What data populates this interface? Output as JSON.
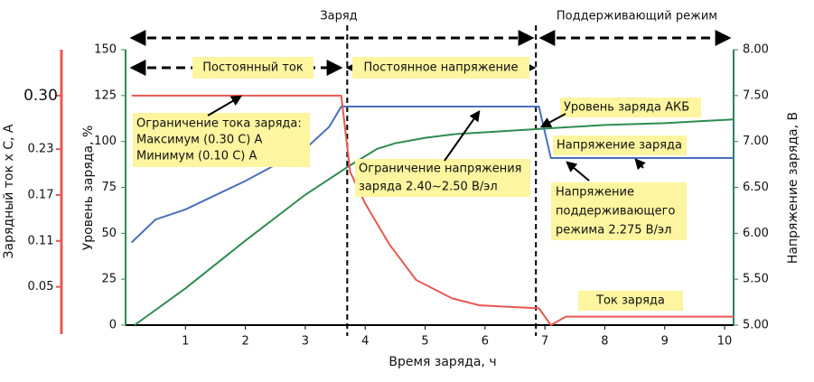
{
  "chart_data": {
    "type": "line",
    "x_label": "Время заряда, ч",
    "y_label": "Уровень заряда, %",
    "y2_label": "Напряжение заряда, В",
    "y3_label": "Зарядный ток х С, А",
    "xlim": [
      0,
      10.15
    ],
    "xticks": [
      1,
      2,
      3,
      4,
      5,
      6,
      7,
      8,
      9,
      10
    ],
    "ylim": [
      0,
      150
    ],
    "yticks": [
      0,
      25,
      50,
      75,
      100,
      125,
      150
    ],
    "y2lim": [
      5,
      8
    ],
    "y2ticks": [
      {
        "value": 5,
        "label": "5.00"
      },
      {
        "value": 5.5,
        "label": "5.50"
      },
      {
        "value": 6,
        "label": "6.00"
      },
      {
        "value": 6.5,
        "label": "6.50"
      },
      {
        "value": 7,
        "label": "7.00"
      },
      {
        "value": 7.5,
        "label": "7.50"
      },
      {
        "value": 8,
        "label": "8.00"
      }
    ],
    "y3lim": [
      0,
      0.36
    ],
    "y3ticks": [
      0.05,
      0.11,
      0.17,
      0.23,
      {
        "value": 0.3,
        "label": "0.30"
      }
    ],
    "dividers": [
      3.7,
      6.85
    ],
    "phases": [
      "Заряд",
      "Поддерживающий режим",
      "Постоянный ток",
      "Постоянное напряжение"
    ],
    "series": [
      {
        "color": "#2e8b50",
        "axis": "y",
        "x": [
          0.15,
          1,
          2,
          3,
          3.7,
          4.2,
          4.5,
          5,
          5.5,
          6,
          7,
          8,
          9,
          10.15
        ],
        "values": [
          0,
          20,
          46,
          71,
          86,
          96,
          99,
          102,
          104,
          105,
          107,
          109,
          110,
          112
        ]
      },
      {
        "color": "#4a6fbd",
        "axis": "y2",
        "x": [
          0.1,
          0.5,
          1,
          2,
          3,
          3.4,
          3.6,
          6.9,
          7.1,
          10.15
        ],
        "values": [
          5.9,
          6.15,
          6.26,
          6.57,
          6.92,
          7.16,
          7.38,
          7.38,
          6.82,
          6.82
        ]
      },
      {
        "color": "#e8584f",
        "axis": "y3",
        "x": [
          0.1,
          3.6,
          3.75,
          4.0,
          4.4,
          4.85,
          5.45,
          5.9,
          6.35,
          6.9,
          7.1,
          7.35,
          10.15
        ],
        "values": [
          0.3,
          0.3,
          0.2,
          0.159,
          0.106,
          0.059,
          0.035,
          0.026,
          0.024,
          0.022,
          0,
          0.011,
          0.011
        ]
      }
    ],
    "annotations": [
      {
        "lines": [
          "Ограничение тока заряда:",
          "Максимум (0.30 С) А",
          "Минимум (0.10 С) А"
        ]
      },
      {
        "lines": [
          "Ограничение напряжения",
          "заряда 2.40~2.50 В/эл"
        ]
      },
      {
        "lines": [
          "Уровень заряда АКБ"
        ]
      },
      {
        "lines": [
          "Напряжение заряда"
        ]
      },
      {
        "lines": [
          "Напряжение",
          "поддерживающего",
          "режима 2.275 В/эл"
        ]
      },
      {
        "lines": [
          "Ток заряда"
        ]
      }
    ]
  }
}
